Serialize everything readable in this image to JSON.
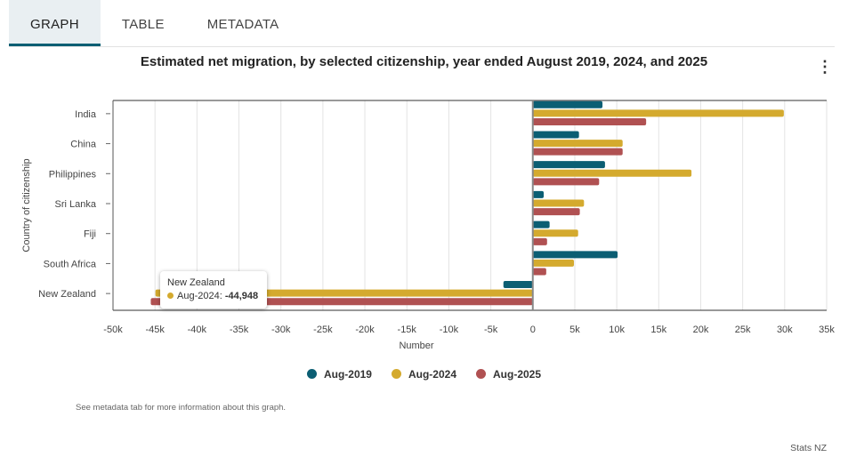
{
  "tabs": [
    {
      "label": "GRAPH",
      "active": true
    },
    {
      "label": "TABLE"
    },
    {
      "label": "METADATA"
    }
  ],
  "menu_icon": "kebab-menu-icon",
  "note": "See metadata tab for more information about this graph.",
  "credit": "Stats NZ",
  "tooltip": {
    "category": "New Zealand",
    "series": "Aug-2024",
    "value": "-44,948"
  },
  "chart_data": {
    "type": "bar",
    "orientation": "horizontal",
    "title": "Estimated net migration, by selected citizenship, year ended August 2019, 2024, and 2025",
    "xlabel": "Number",
    "ylabel": "Country of citizenship",
    "xlim": [
      -50000,
      35000
    ],
    "xticks": [
      -50000,
      -45000,
      -40000,
      -35000,
      -30000,
      -25000,
      -20000,
      -15000,
      -10000,
      -5000,
      0,
      5000,
      10000,
      15000,
      20000,
      25000,
      30000,
      35000
    ],
    "xtick_labels": [
      "-50k",
      "-45k",
      "-40k",
      "-35k",
      "-30k",
      "-25k",
      "-20k",
      "-15k",
      "-10k",
      "-5k",
      "0",
      "5k",
      "10k",
      "15k",
      "20k",
      "25k",
      "30k",
      "35k"
    ],
    "categories": [
      "India",
      "China",
      "Philippines",
      "Sri Lanka",
      "Fiji",
      "South Africa",
      "New Zealand"
    ],
    "series": [
      {
        "name": "Aug-2019",
        "color": "#0b5e73",
        "values": [
          8300,
          5500,
          8600,
          1300,
          2000,
          10100,
          -3500
        ]
      },
      {
        "name": "Aug-2024",
        "color": "#d4aa2e",
        "values": [
          29900,
          10700,
          18900,
          6100,
          5400,
          4900,
          -44948
        ]
      },
      {
        "name": "Aug-2025",
        "color": "#b05152",
        "values": [
          13500,
          10700,
          7900,
          5600,
          1700,
          1600,
          -45500
        ]
      }
    ],
    "legend": "bottom-center",
    "grid": true
  }
}
